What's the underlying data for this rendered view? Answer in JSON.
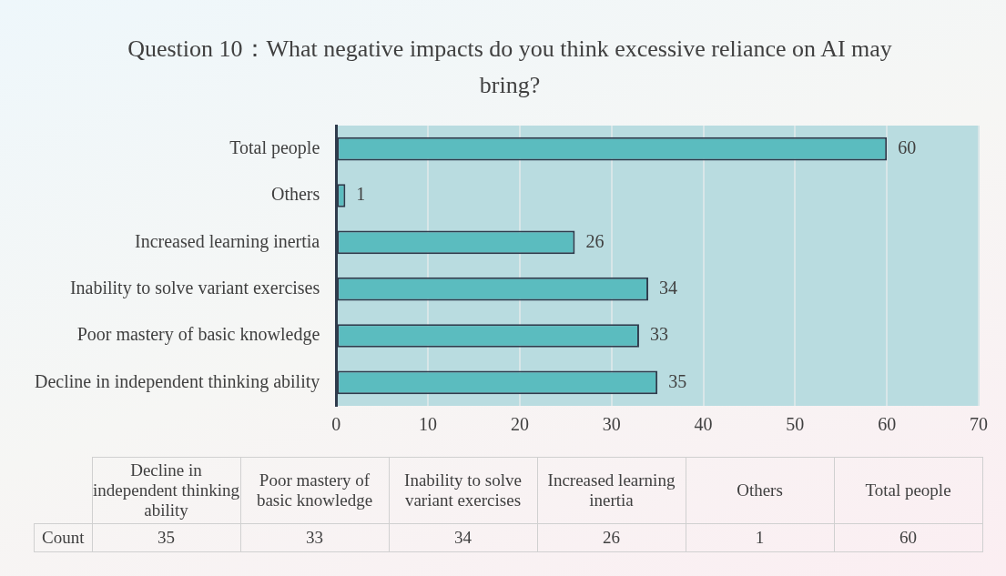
{
  "chart_data": [
    {
      "type": "bar",
      "orientation": "horizontal",
      "title": "Question 10：What negative impacts do you think excessive reliance on AI may bring?",
      "categories": [
        "Total people",
        "Others",
        "Increased learning inertia",
        "Inability to solve variant exercises",
        "Poor mastery of basic knowledge",
        "Decline in independent thinking ability"
      ],
      "series": [
        {
          "color": "#5bbcbf",
          "values": [
            60,
            1,
            26,
            34,
            33,
            35
          ]
        }
      ],
      "xlim": [
        0,
        70
      ],
      "xticks": [
        0,
        10,
        20,
        30,
        40,
        50,
        60,
        70
      ],
      "grid": "x",
      "legend": false,
      "data_labels": true
    },
    {
      "type": "other",
      "categories": [
        "Decline in independent thinking ability",
        "Poor mastery of basic knowledge",
        "Inability to solve variant exercises",
        "Increased learning inertia",
        "Others",
        "Total people"
      ],
      "series": [
        {
          "name": "Count",
          "values": [
            35,
            33,
            34,
            26,
            1,
            60
          ]
        }
      ],
      "data_labels": true
    }
  ]
}
